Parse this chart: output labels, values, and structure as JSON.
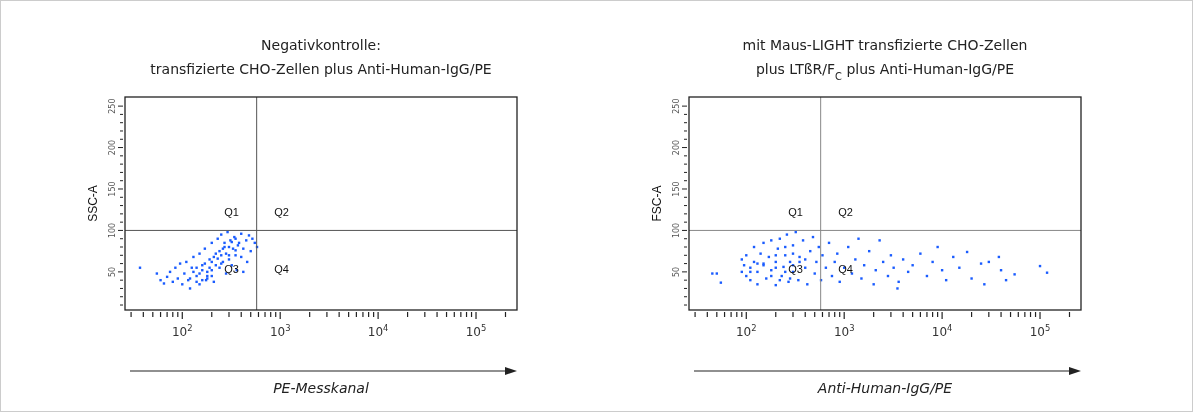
{
  "chart_data": [
    {
      "type": "scatter",
      "title": "Negativkontrolle:",
      "subtitle": "transfizierte CHO-Zellen plus Anti-Human-IgG/PE",
      "xlabel": "PE-Messkanal",
      "ylabel": "SSC-A",
      "log": "x",
      "marker": "square",
      "grid": false,
      "xlim": [
        26,
        262144
      ],
      "ylim": [
        4,
        261
      ],
      "xticks": [
        {
          "value": 30,
          "label": null
        },
        {
          "value": 40,
          "label": null
        },
        {
          "value": 50,
          "label": null
        },
        {
          "value": 60,
          "label": null
        },
        {
          "value": 70,
          "label": null
        },
        {
          "value": 80,
          "label": null
        },
        {
          "value": 90,
          "label": null
        },
        {
          "value": 100,
          "label": "10$^{2}$"
        },
        {
          "value": 200,
          "label": null
        },
        {
          "value": 300,
          "label": null
        },
        {
          "value": 400,
          "label": null
        },
        {
          "value": 500,
          "label": null
        },
        {
          "value": 600,
          "label": null
        },
        {
          "value": 700,
          "label": null
        },
        {
          "value": 800,
          "label": null
        },
        {
          "value": 900,
          "label": null
        },
        {
          "value": 1000,
          "label": "10$^{3}$"
        },
        {
          "value": 2000,
          "label": null
        },
        {
          "value": 3000,
          "label": null
        },
        {
          "value": 4000,
          "label": null
        },
        {
          "value": 5000,
          "label": null
        },
        {
          "value": 6000,
          "label": null
        },
        {
          "value": 7000,
          "label": null
        },
        {
          "value": 8000,
          "label": null
        },
        {
          "value": 9000,
          "label": null
        },
        {
          "value": 10000,
          "label": "10$^{4}$"
        },
        {
          "value": 20000,
          "label": null
        },
        {
          "value": 30000,
          "label": null
        },
        {
          "value": 40000,
          "label": null
        },
        {
          "value": 50000,
          "label": null
        },
        {
          "value": 60000,
          "label": null
        },
        {
          "value": 70000,
          "label": null
        },
        {
          "value": 80000,
          "label": null
        },
        {
          "value": 90000,
          "label": null
        },
        {
          "value": 100000,
          "label": "10$^{5}$"
        },
        {
          "value": 200000,
          "label": null
        }
      ],
      "yticks": [
        {
          "value": 10,
          "label": null
        },
        {
          "value": 20,
          "label": null
        },
        {
          "value": 30,
          "label": null
        },
        {
          "value": 40,
          "label": null
        },
        50,
        {
          "value": 60,
          "label": null
        },
        {
          "value": 70,
          "label": null
        },
        {
          "value": 80,
          "label": null
        },
        {
          "value": 90,
          "label": null
        },
        100,
        {
          "value": 110,
          "label": null
        },
        {
          "value": 120,
          "label": null
        },
        {
          "value": 130,
          "label": null
        },
        {
          "value": 140,
          "label": null
        },
        150,
        {
          "value": 160,
          "label": null
        },
        {
          "value": 170,
          "label": null
        },
        {
          "value": 180,
          "label": null
        },
        {
          "value": 190,
          "label": null
        },
        200,
        {
          "value": 210,
          "label": null
        },
        {
          "value": 220,
          "label": null
        },
        {
          "value": 230,
          "label": null
        },
        {
          "value": 240,
          "label": null
        },
        250
      ],
      "ref_lines": [
        {
          "axis": "x",
          "value": 575,
          "color": "#555555"
        },
        {
          "axis": "y",
          "value": 100,
          "color": "#555555"
        }
      ],
      "annotations": [
        "Q1",
        "Q2",
        "Q3",
        "Q4"
      ],
      "series": [
        {
          "color": "#1a5cff",
          "x": [
            37,
            55,
            60,
            65,
            70,
            75,
            80,
            85,
            90,
            95,
            100,
            105,
            110,
            115,
            120,
            125,
            130,
            140,
            150,
            150,
            160,
            170,
            175,
            180,
            190,
            200,
            200,
            210,
            220,
            230,
            240,
            250,
            260,
            270,
            280,
            290,
            300,
            310,
            320,
            340,
            350,
            360,
            380,
            400,
            400,
            420,
            450,
            460,
            480,
            500,
            520,
            550,
            580,
            130,
            140,
            150,
            160,
            170,
            180,
            190,
            200,
            210,
            220,
            230,
            240,
            250,
            260,
            270,
            280,
            300,
            320,
            330,
            350,
            370,
            180,
            160,
            140,
            120,
            200,
            250,
            300,
            350,
            420
          ],
          "values": [
            55,
            48,
            40,
            36,
            44,
            50,
            38,
            55,
            42,
            60,
            35,
            48,
            62,
            40,
            30,
            55,
            68,
            45,
            72,
            35,
            58,
            78,
            40,
            50,
            65,
            85,
            45,
            38,
            72,
            90,
            55,
            95,
            62,
            80,
            48,
            98,
            70,
            88,
            58,
            92,
            76,
            52,
            85,
            96,
            68,
            50,
            88,
            62,
            94,
            75,
            90,
            85,
            80,
            50,
            55,
            48,
            52,
            60,
            45,
            55,
            62,
            68,
            58,
            66,
            75,
            70,
            78,
            85,
            72,
            80,
            86,
            78,
            90,
            82,
            42,
            40,
            38,
            42,
            52,
            60,
            65,
            70,
            78
          ]
        }
      ]
    },
    {
      "type": "scatter",
      "title": "mit Maus-LIGHT transfizierte CHO-Zellen",
      "subtitle": "plus LTßR/F$_{C}$ plus Anti-Human-IgG/PE",
      "xlabel": "Anti-Human-IgG/PE",
      "ylabel": "FSC-A",
      "log": "x",
      "marker": "square",
      "grid": false,
      "xlim": [
        26,
        262144
      ],
      "ylim": [
        4,
        261
      ],
      "xticks": [
        {
          "value": 30,
          "label": null
        },
        {
          "value": 40,
          "label": null
        },
        {
          "value": 50,
          "label": null
        },
        {
          "value": 60,
          "label": null
        },
        {
          "value": 70,
          "label": null
        },
        {
          "value": 80,
          "label": null
        },
        {
          "value": 90,
          "label": null
        },
        {
          "value": 100,
          "label": "10$^{2}$"
        },
        {
          "value": 200,
          "label": null
        },
        {
          "value": 300,
          "label": null
        },
        {
          "value": 400,
          "label": null
        },
        {
          "value": 500,
          "label": null
        },
        {
          "value": 600,
          "label": null
        },
        {
          "value": 700,
          "label": null
        },
        {
          "value": 800,
          "label": null
        },
        {
          "value": 900,
          "label": null
        },
        {
          "value": 1000,
          "label": "10$^{3}$"
        },
        {
          "value": 2000,
          "label": null
        },
        {
          "value": 3000,
          "label": null
        },
        {
          "value": 4000,
          "label": null
        },
        {
          "value": 5000,
          "label": null
        },
        {
          "value": 6000,
          "label": null
        },
        {
          "value": 7000,
          "label": null
        },
        {
          "value": 8000,
          "label": null
        },
        {
          "value": 9000,
          "label": null
        },
        {
          "value": 10000,
          "label": "10$^{4}$"
        },
        {
          "value": 20000,
          "label": null
        },
        {
          "value": 30000,
          "label": null
        },
        {
          "value": 40000,
          "label": null
        },
        {
          "value": 50000,
          "label": null
        },
        {
          "value": 60000,
          "label": null
        },
        {
          "value": 70000,
          "label": null
        },
        {
          "value": 80000,
          "label": null
        },
        {
          "value": 90000,
          "label": null
        },
        {
          "value": 100000,
          "label": "10$^{5}$"
        },
        {
          "value": 200000,
          "label": null
        }
      ],
      "yticks": [
        {
          "value": 10,
          "label": null
        },
        {
          "value": 20,
          "label": null
        },
        {
          "value": 30,
          "label": null
        },
        {
          "value": 40,
          "label": null
        },
        50,
        {
          "value": 60,
          "label": null
        },
        {
          "value": 70,
          "label": null
        },
        {
          "value": 80,
          "label": null
        },
        {
          "value": 90,
          "label": null
        },
        100,
        {
          "value": 110,
          "label": null
        },
        {
          "value": 120,
          "label": null
        },
        {
          "value": 130,
          "label": null
        },
        {
          "value": 140,
          "label": null
        },
        150,
        {
          "value": 160,
          "label": null
        },
        {
          "value": 170,
          "label": null
        },
        {
          "value": 180,
          "label": null
        },
        {
          "value": 190,
          "label": null
        },
        200,
        {
          "value": 210,
          "label": null
        },
        {
          "value": 220,
          "label": null
        },
        {
          "value": 230,
          "label": null
        },
        {
          "value": 240,
          "label": null
        },
        250
      ],
      "ref_lines": [
        {
          "axis": "x",
          "value": 575,
          "color": "#888888"
        },
        {
          "axis": "y",
          "value": 100,
          "color": "#888888"
        }
      ],
      "annotations": [
        "Q1",
        "Q2",
        "Q3",
        "Q4"
      ],
      "series": [
        {
          "color": "#1a5cff",
          "x": [
            45,
            50,
            55,
            90,
            90,
            95,
            100,
            100,
            110,
            110,
            120,
            120,
            130,
            130,
            140,
            150,
            150,
            160,
            170,
            180,
            180,
            200,
            200,
            210,
            220,
            230,
            240,
            250,
            260,
            270,
            280,
            300,
            300,
            320,
            340,
            350,
            380,
            400,
            420,
            450,
            480,
            500,
            520,
            550,
            580,
            600,
            650,
            700,
            750,
            800,
            850,
            900,
            1000,
            1100,
            1200,
            1300,
            1400,
            1500,
            1600,
            1800,
            2000,
            2100,
            2300,
            2500,
            2800,
            3000,
            3200,
            3500,
            3600,
            4000,
            4500,
            5000,
            6000,
            7000,
            8000,
            9000,
            10000,
            11000,
            13000,
            15000,
            18000,
            20000,
            25000,
            27000,
            30000,
            38000,
            40000,
            45000,
            55000,
            100000,
            118000,
            150,
            200,
            250,
            300,
            350,
            200,
            250,
            300,
            400,
            180,
            220,
            280,
            130,
            110
          ],
          "values": [
            48,
            48,
            37,
            50,
            65,
            58,
            45,
            70,
            40,
            55,
            80,
            62,
            35,
            50,
            72,
            85,
            58,
            42,
            68,
            88,
            52,
            34,
            62,
            78,
            90,
            45,
            56,
            70,
            95,
            38,
            62,
            82,
            50,
            98,
            40,
            68,
            88,
            55,
            35,
            75,
            92,
            48,
            62,
            80,
            40,
            70,
            55,
            85,
            45,
            62,
            72,
            38,
            55,
            80,
            48,
            65,
            90,
            42,
            58,
            75,
            35,
            52,
            88,
            62,
            45,
            70,
            55,
            30,
            38,
            65,
            50,
            58,
            72,
            45,
            62,
            80,
            52,
            40,
            68,
            55,
            74,
            42,
            60,
            35,
            62,
            68,
            52,
            40,
            47,
            57,
            49,
            60,
            55,
            50,
            58,
            62,
            70,
            80,
            72,
            65,
            45,
            40,
            42,
            60,
            50
          ]
        }
      ]
    }
  ]
}
